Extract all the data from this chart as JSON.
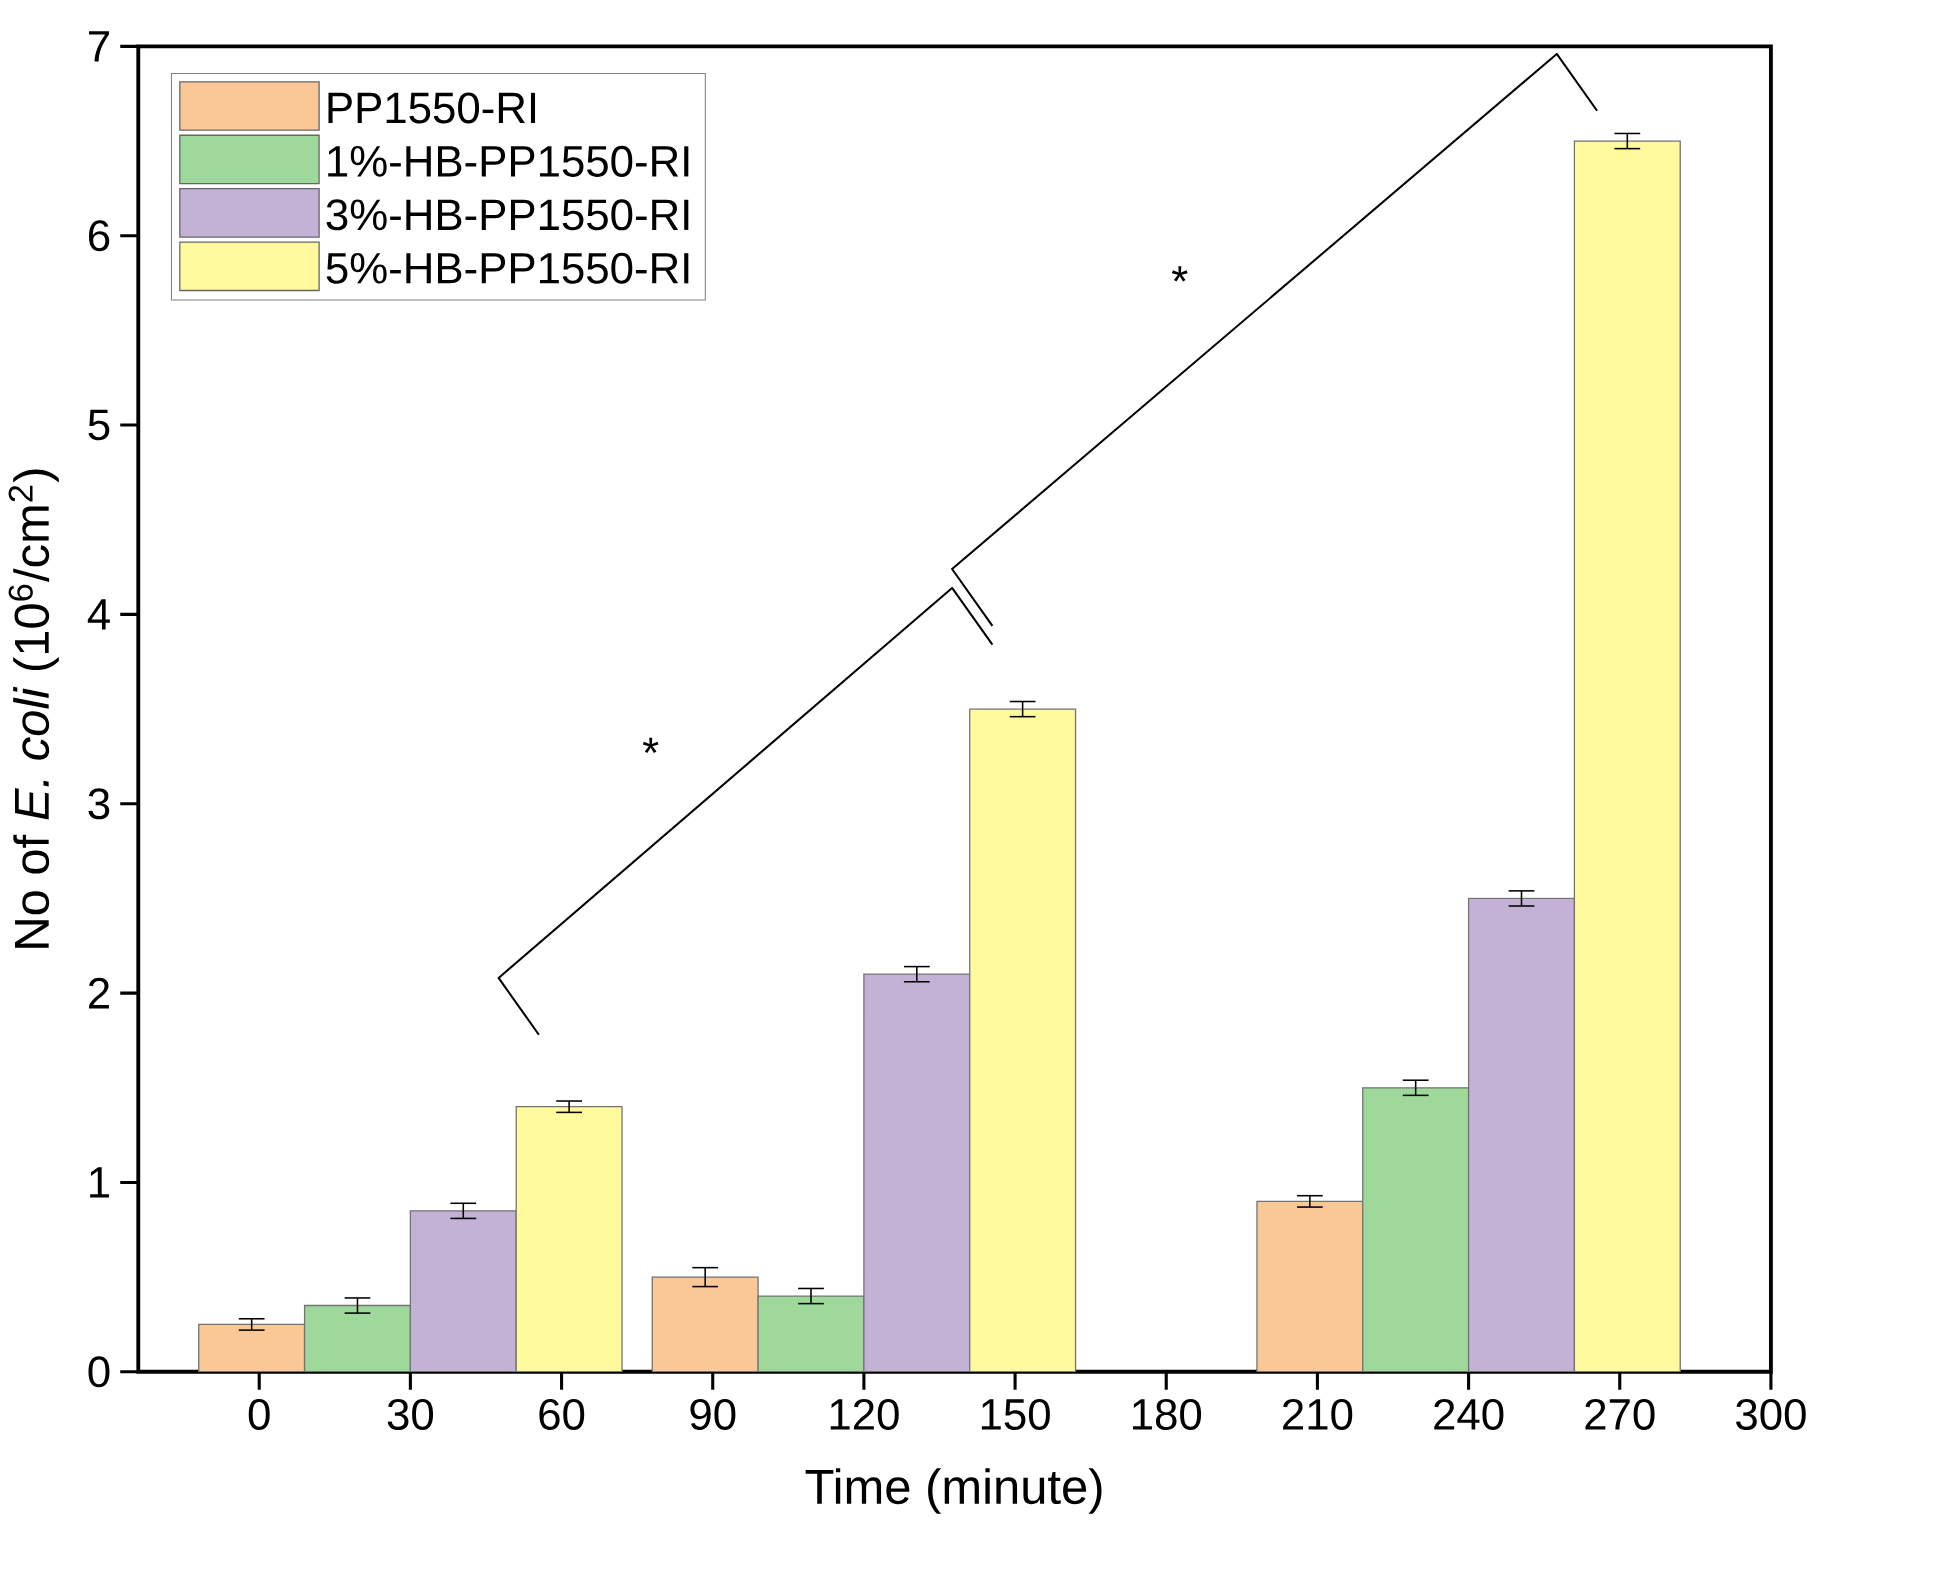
{
  "chart_data": {
    "type": "bar",
    "xlabel": "Time (minute)",
    "ylabel": "No of *E. coli* (10$^{6}$/cm$^{2}$)",
    "x": [
      30,
      120,
      240
    ],
    "series": [
      {
        "name": "PP1550-RI",
        "color": "#fac896",
        "values": [
          0.25,
          0.5,
          0.9
        ],
        "errors": [
          0.03,
          0.05,
          0.03
        ]
      },
      {
        "name": "1%-HB-PP1550-RI",
        "color": "#9ed89b",
        "values": [
          0.35,
          0.4,
          1.5
        ],
        "errors": [
          0.04,
          0.04,
          0.04
        ]
      },
      {
        "name": "3%-HB-PP1550-RI",
        "color": "#c3b2d6",
        "values": [
          0.85,
          2.1,
          2.5
        ],
        "errors": [
          0.04,
          0.04,
          0.04
        ]
      },
      {
        "name": "5%-HB-PP1550-RI",
        "color": "#fffa9e",
        "values": [
          1.4,
          3.5,
          6.5
        ],
        "errors": [
          0.03,
          0.04,
          0.04
        ]
      }
    ],
    "xlim": [
      -24,
      300
    ],
    "xticks": [
      0,
      30,
      60,
      90,
      120,
      150,
      180,
      210,
      240,
      270,
      300
    ],
    "ylim": [
      0,
      7
    ],
    "yticks": [
      0,
      1,
      2,
      3,
      4,
      5,
      6,
      7
    ],
    "annotations": [
      "*",
      "*"
    ],
    "legend": "top left",
    "grid": false
  }
}
